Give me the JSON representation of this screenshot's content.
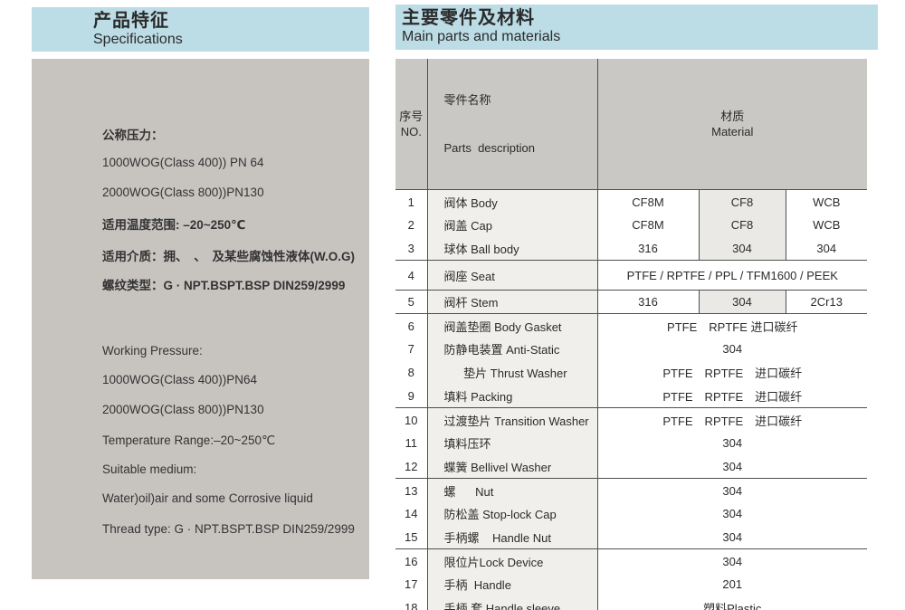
{
  "colors": {
    "band_blue": "#bcdce6",
    "panel_gray": "#c7c4c0",
    "table_header_gray": "#cac8c4",
    "parts_column_bg": "#f0efec",
    "middle_material_bg": "#ebe9e6",
    "rule_line": "#4f4f4f"
  },
  "left_section": {
    "title_zh": "产品特征",
    "title_en": "Specifications",
    "lines": [
      "公称压力：",
      "1000WOG(Class 400)) PN 64",
      "2000WOG(Class 800))PN130",
      "适用温度范围: –20~250℃",
      "适用介质：拥、　、　及某些腐蚀性液体(W.O.G)",
      "螺纹类型：G · NPT.BSPT.BSP DIN259/2999",
      "Working Pressure:",
      "1000WOG(Class 400))PN64",
      "2000WOG(Class 800))PN130",
      "Temperature Range:–20~250℃",
      "Suitable medium:",
      "Water)oil)air and some Corrosive liquid",
      "Thread type: G · NPT.BSPT.BSP DIN259/2999"
    ]
  },
  "right_section": {
    "title_zh": "主要零件及材料",
    "title_en": "Main parts and materials",
    "table": {
      "headers": {
        "no_zh": "序号",
        "no_en": "NO.",
        "parts_zh": "零件名称",
        "parts_en": "Parts  description",
        "material_zh": "材质",
        "material_en": "Material"
      },
      "rows": [
        {
          "no": "1",
          "part": "阀体 Body",
          "materials": [
            "CF8M",
            "CF8",
            "WCB"
          ]
        },
        {
          "no": "2",
          "part": "阀盖 Cap",
          "materials": [
            "CF8M",
            "CF8",
            "WCB"
          ]
        },
        {
          "no": "3",
          "part": "球体 Ball body",
          "materials": [
            "316",
            "304",
            "304"
          ]
        },
        {
          "no": "4",
          "part": "阀座 Seat",
          "material_span": "PTFE / RPTFE / PPL / TFM1600 / PEEK"
        },
        {
          "no": "5",
          "part": "阀杆 Stem",
          "materials": [
            "316",
            "304",
            "2Cr13"
          ]
        },
        {
          "no": "6",
          "part": "阀盖垫圈 Body Gasket",
          "material_span": "PTFE　RPTFE 进口碳纤"
        },
        {
          "no": "7",
          "part": "防静电装置 Anti-Static",
          "material_span": "304"
        },
        {
          "no": "8",
          "part": "      垫片 Thrust Washer",
          "material_span": "PTFE　RPTFE　进口碳纤"
        },
        {
          "no": "9",
          "part": "填料 Packing",
          "material_span": "PTFE　RPTFE　进口碳纤"
        },
        {
          "no": "10",
          "part": "过渡垫片 Transition Washer",
          "material_span": "PTFE　RPTFE　进口碳纤"
        },
        {
          "no": "11",
          "part": "填料压环",
          "material_span": "304"
        },
        {
          "no": "12",
          "part": "蝶簧 Bellivel Washer",
          "material_span": "304"
        },
        {
          "no": "13",
          "part": "螺      Nut",
          "material_span": "304"
        },
        {
          "no": "14",
          "part": "防松盖 Stop-lock Cap",
          "material_span": "304"
        },
        {
          "no": "15",
          "part": "手柄螺    Handle Nut",
          "material_span": "304"
        },
        {
          "no": "16",
          "part": "限位片Lock Device",
          "material_span": "304"
        },
        {
          "no": "17",
          "part": "手柄  Handle",
          "material_span": "201"
        },
        {
          "no": "18",
          "part": "手柄 套 Handle sleeve",
          "material_span": "塑料Plastic"
        }
      ]
    }
  }
}
